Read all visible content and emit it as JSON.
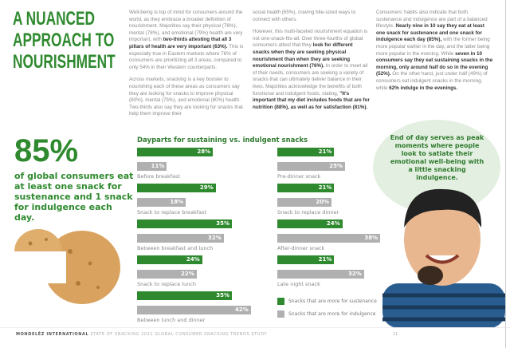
{
  "title": [
    "A NUANCED",
    "APPROACH TO",
    "NOURISHMENT"
  ],
  "col1": {
    "p1a": "Well-being is top of mind for consumers around the world, as they embrace a broader definition of nourishment. Majorities say their physical (76%), mental (78%), and emotional (79%) health are very important, with ",
    "p1b": "two-thirds attesting that all 3 pillars of health are very important (63%).",
    "p1c": " This is especially true in Eastern markets where 76% of consumers are prioritizing all 3 areas, compared to only 54% in their Western counterparts.",
    "p2": "Across markets, snacking is a key booster to nourishing each of these areas as consumers say they are looking for snacks to improve physical (80%), mental (75%), and emotional (80%) health. Two-thirds also say they are looking for snacks that help them improve their"
  },
  "col2": {
    "p1": "social health (65%), craving bite-sized ways to connect with others.",
    "p2a": "However, this multi-faceted nourishment equation is not one-snack-fits-all. Over three-fourths of global consumers attest that they ",
    "p2b": "look for different snacks when they are seeking physical nourishment than when they are seeking emotional nourishment (76%).",
    "p2c": " In order to meet all of their needs, consumers are seeking a variety of snacks that can ultimately deliver balance in their lives. Majorities acknowledge the benefits of both functional and indulgent foods, stating, ",
    "p2d": "\"It's important that my diet includes foods that are for nutrition (88%), as well as for satisfaction (81%)."
  },
  "col3": {
    "a": "Consumers' habits also indicate that both sustenance and indulgence are part of a balanced lifestyle. ",
    "b": "Nearly nine in 10 say they eat at least one snack for sustenance and one snack for indulgence each day (85%),",
    "c": " with the former being more popular earlier in the day, and the latter being more popular in the evening. While ",
    "d": "seven in 10 consumers say they eat sustaining snacks in the morning, only around half do so in the evening (52%).",
    "e": " On the other hand, just under half (49%) of consumers eat indulgent snacks in the morning, while ",
    "f": "62% indulge in the evenings."
  },
  "stat": {
    "value": "85%",
    "text": "of global consumers eat at least one snack for sustenance and 1 snack for indulgence each day."
  },
  "callout": "End of day serves as peak moments where people look to satiate their emotional well-being with a little snacking indulgence.",
  "chart_data": {
    "type": "bar",
    "title": "Dayparts for sustaining vs. indulgent snacks",
    "categories": [
      "Before breakfast",
      "Snack to replace breakfast",
      "Between breakfast and lunch",
      "Snack to replace lunch",
      "Between lunch and dinner",
      "Pre-dinner snack",
      "Snack to replace dinner",
      "After-dinner snack",
      "Late night snack"
    ],
    "series": [
      {
        "name": "Snacks that are more for sustenance",
        "color": "#2f8a2f",
        "values": [
          28,
          29,
          35,
          24,
          35,
          21,
          21,
          24,
          21
        ]
      },
      {
        "name": "Snacks that are more for indulgence",
        "color": "#b0b0b0",
        "values": [
          11,
          18,
          32,
          22,
          42,
          25,
          20,
          38,
          32
        ]
      }
    ],
    "unit": "%"
  },
  "footer": {
    "brand": "MONDELĒZ INTERNATIONAL",
    "text": "STATE OF SNACKING 2021 GLOBAL CONSUMER SNACKING TRENDS STUDY",
    "page": "11"
  }
}
